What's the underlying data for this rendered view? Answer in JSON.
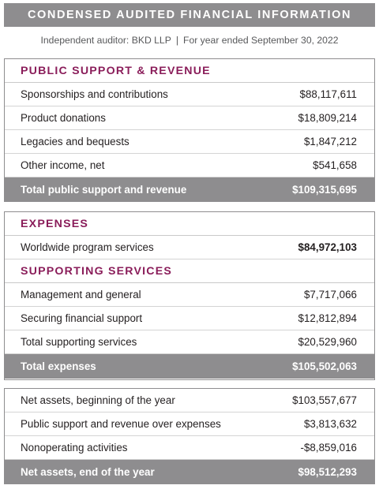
{
  "header": {
    "title": "CONDENSED AUDITED FINANCIAL INFORMATION",
    "auditor": "Independent auditor: BKD LLP",
    "separator": "|",
    "period": "For year ended September 30, 2022"
  },
  "revenue": {
    "heading": "PUBLIC SUPPORT & REVENUE",
    "rows": [
      {
        "label": "Sponsorships and contributions",
        "value": "$88,117,611"
      },
      {
        "label": "Product donations",
        "value": "$18,809,214"
      },
      {
        "label": "Legacies and bequests",
        "value": "$1,847,212"
      },
      {
        "label": "Other income, net",
        "value": "$541,658"
      }
    ],
    "total": {
      "label": "Total public support and revenue",
      "value": "$109,315,695"
    }
  },
  "expenses": {
    "heading": "EXPENSES",
    "program": {
      "label": "Worldwide program services",
      "value": "$84,972,103"
    },
    "supporting_heading": "SUPPORTING SERVICES",
    "rows": [
      {
        "label": "Management and general",
        "value": "$7,717,066"
      },
      {
        "label": "Securing financial support",
        "value": "$12,812,894"
      },
      {
        "label": "Total supporting services",
        "value": "$20,529,960"
      }
    ],
    "total": {
      "label": "Total expenses",
      "value": "$105,502,063"
    }
  },
  "net_assets": {
    "rows": [
      {
        "label": "Net assets, beginning of the year",
        "value": "$103,557,677"
      },
      {
        "label": "Public support and revenue over expenses",
        "value": "$3,813,632"
      },
      {
        "label": "Nonoperating activities",
        "value": "-$8,859,016"
      }
    ],
    "total": {
      "label": "Net assets, end of the year",
      "value": "$98,512,293"
    }
  },
  "colors": {
    "banner_gray": "#8e8d8f",
    "heading_magenta": "#8a1d5a",
    "text": "#231f20"
  }
}
